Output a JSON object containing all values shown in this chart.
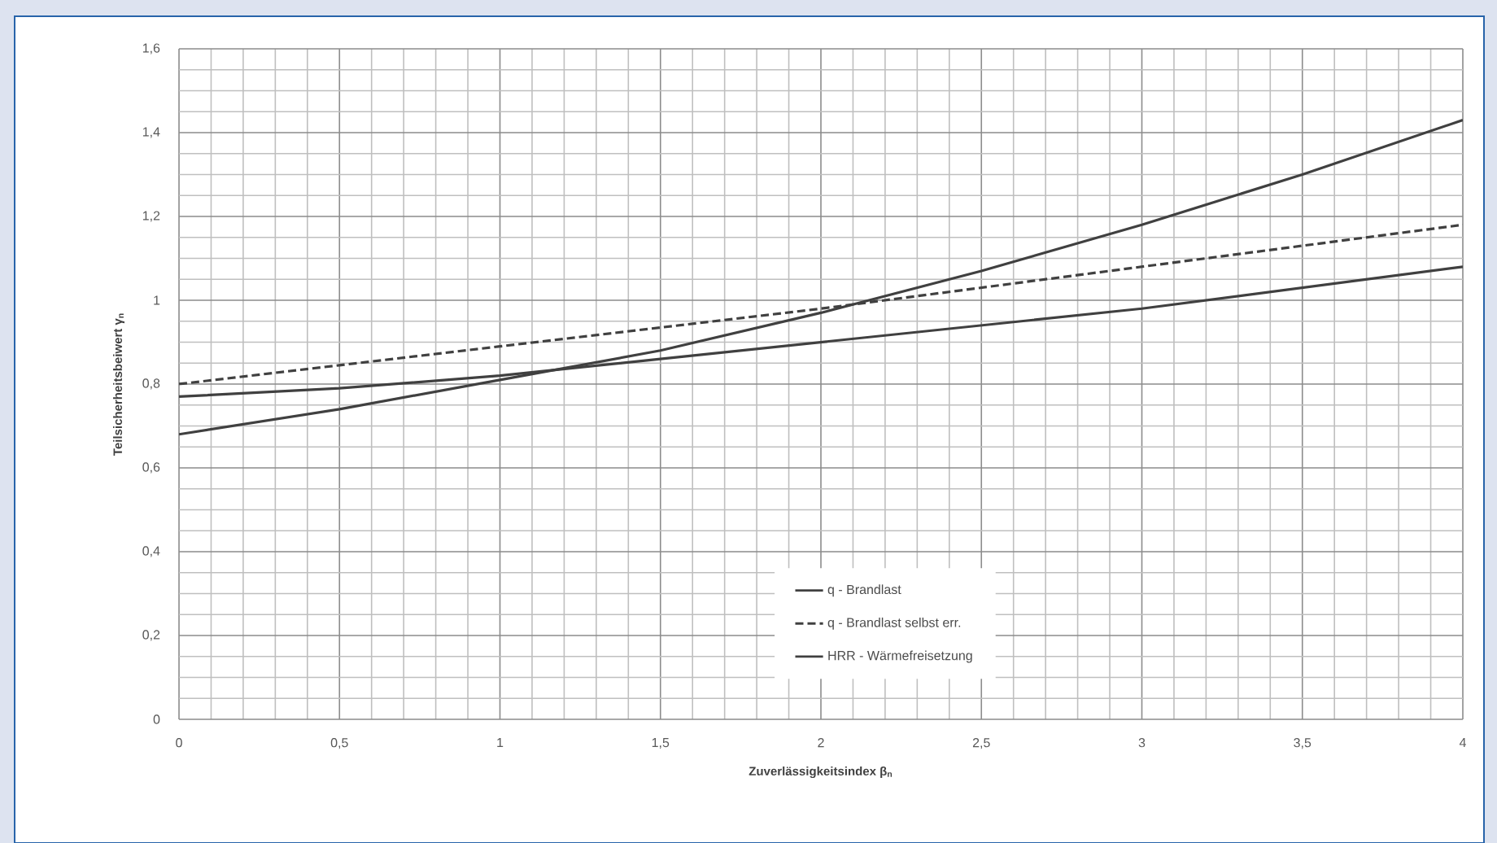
{
  "chart_data": {
    "type": "line",
    "xlabel": "Zuverlässigkeitsindex β$_{n}$",
    "ylabel": "Teilsicherheitsbeiwert γ$_{n}$",
    "x": [
      0,
      0.5,
      1,
      1.5,
      2,
      2.5,
      3,
      3.5,
      4
    ],
    "series": [
      {
        "name": "q - Brandlast",
        "color": "#404040",
        "line_style": "solid",
        "values": [
          0.68,
          0.74,
          0.81,
          0.88,
          0.97,
          1.07,
          1.18,
          1.3,
          1.43
        ]
      },
      {
        "name": "q - Brandlast selbst err.",
        "color": "#404040",
        "line_style": "dashed",
        "values": [
          0.8,
          0.845,
          0.89,
          0.935,
          0.98,
          1.03,
          1.08,
          1.13,
          1.18
        ]
      },
      {
        "name": "HRR - Wärmefreisetzung",
        "color": "#404040",
        "line_style": "solid",
        "values": [
          0.77,
          0.79,
          0.82,
          0.86,
          0.9,
          0.94,
          0.98,
          1.03,
          1.08
        ]
      }
    ],
    "xlim": [
      0,
      4
    ],
    "ylim": [
      0,
      1.6
    ],
    "xticks": [
      0,
      {
        "value": 0.5,
        "label": "0,5"
      },
      1,
      {
        "value": 1.5,
        "label": "1,5"
      },
      2,
      {
        "value": 2.5,
        "label": "2,5"
      },
      3,
      {
        "value": 3.5,
        "label": "3,5"
      },
      4
    ],
    "yticks": [
      0,
      {
        "value": 0.2,
        "label": "0,2"
      },
      {
        "value": 0.4,
        "label": "0,4"
      },
      {
        "value": 0.6,
        "label": "0,6"
      },
      {
        "value": 0.8,
        "label": "0,8"
      },
      1,
      {
        "value": 1.2,
        "label": "1,2"
      },
      {
        "value": 1.4,
        "label": "1,4"
      },
      {
        "value": 1.6,
        "label": "1,6"
      }
    ],
    "grid": true,
    "legend": "bottom",
    "marker": "none"
  }
}
